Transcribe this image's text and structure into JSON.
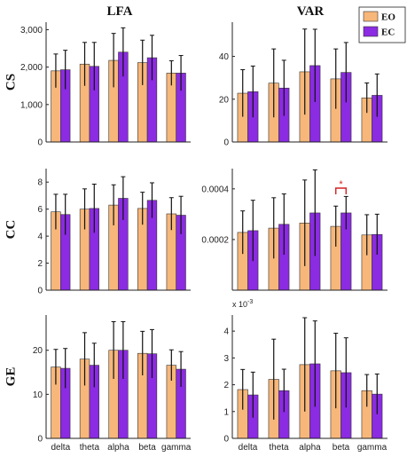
{
  "figure": {
    "col_titles": [
      "LFA",
      "VAR"
    ],
    "row_titles": [
      "CS",
      "CC",
      "GE"
    ],
    "legend": {
      "items": [
        {
          "label": "EO",
          "color": "#f7b77a"
        },
        {
          "label": "EC",
          "color": "#8b2be2"
        }
      ],
      "placement": "top-right"
    }
  },
  "chart_data": [
    {
      "type": "bar",
      "id": "cs-lfa",
      "categories": [
        "delta",
        "theta",
        "alpha",
        "beta",
        "gamma"
      ],
      "ylim": [
        0,
        3200
      ],
      "yticks": [
        0,
        1000,
        2000,
        3000
      ],
      "ytick_labels": [
        "0",
        "1,000",
        "2,000",
        "3,000"
      ],
      "series": [
        {
          "name": "EO",
          "values": [
            1900,
            2080,
            2180,
            2120,
            1840
          ],
          "errors": [
            450,
            580,
            720,
            600,
            330
          ]
        },
        {
          "name": "EC",
          "values": [
            1930,
            2020,
            2400,
            2250,
            1840
          ],
          "errors": [
            520,
            640,
            650,
            600,
            470
          ]
        }
      ]
    },
    {
      "type": "bar",
      "id": "cs-var",
      "categories": [
        "delta",
        "theta",
        "alpha",
        "beta",
        "gamma"
      ],
      "ylim": [
        0,
        56
      ],
      "yticks": [
        0,
        20,
        40
      ],
      "ytick_labels": [
        "0",
        "20",
        "40"
      ],
      "series": [
        {
          "name": "EO",
          "values": [
            22.8,
            27.5,
            32.8,
            29.5,
            20.6
          ],
          "errors": [
            11,
            16,
            20,
            14,
            7
          ]
        },
        {
          "name": "EC",
          "values": [
            23.5,
            25.2,
            35.7,
            32.5,
            21.8
          ],
          "errors": [
            12,
            13,
            17,
            14,
            10
          ]
        }
      ]
    },
    {
      "type": "bar",
      "id": "cc-lfa",
      "categories": [
        "delta",
        "theta",
        "alpha",
        "beta",
        "gamma"
      ],
      "ylim": [
        0,
        9
      ],
      "yticks": [
        0,
        2,
        4,
        6,
        8
      ],
      "ytick_labels": [
        "0",
        "2",
        "4",
        "6",
        "8"
      ],
      "series": [
        {
          "name": "EO",
          "values": [
            5.8,
            6.0,
            6.3,
            6.05,
            5.65
          ],
          "errors": [
            1.3,
            1.5,
            1.5,
            1.2,
            1.2
          ]
        },
        {
          "name": "EC",
          "values": [
            5.6,
            6.05,
            6.8,
            6.65,
            5.55
          ],
          "errors": [
            1.5,
            1.8,
            1.6,
            1.3,
            1.4
          ]
        }
      ]
    },
    {
      "type": "bar",
      "id": "cc-var",
      "categories": [
        "delta",
        "theta",
        "alpha",
        "beta",
        "gamma"
      ],
      "ylim": [
        0,
        0.00048
      ],
      "yticks": [
        0.0002,
        0.0004
      ],
      "ytick_labels": [
        "0.0002",
        "0.0004"
      ],
      "series": [
        {
          "name": "EO",
          "values": [
            0.000228,
            0.000245,
            0.000265,
            0.000252,
            0.000218
          ],
          "errors": [
            8.5e-05,
            0.00012,
            0.00017,
            8e-05,
            8e-05
          ]
        },
        {
          "name": "EC",
          "values": [
            0.000235,
            0.00026,
            0.000305,
            0.000305,
            0.00022
          ],
          "errors": [
            0.00012,
            0.00012,
            0.00017,
            6.5e-05,
            8e-05
          ]
        }
      ],
      "significance": {
        "category": "beta",
        "marker": "*"
      }
    },
    {
      "type": "bar",
      "id": "ge-lfa",
      "categories": [
        "delta",
        "theta",
        "alpha",
        "beta",
        "gamma"
      ],
      "ylim": [
        0,
        28
      ],
      "yticks": [
        0,
        10,
        20
      ],
      "ytick_labels": [
        "0",
        "10",
        "20"
      ],
      "series": [
        {
          "name": "EO",
          "values": [
            16.2,
            18.0,
            20.0,
            19.3,
            16.6
          ],
          "errors": [
            4,
            6,
            6.5,
            5,
            3.5
          ]
        },
        {
          "name": "EC",
          "values": [
            15.9,
            16.6,
            20.0,
            19.2,
            15.7
          ],
          "errors": [
            4.5,
            5,
            6.5,
            5.5,
            4
          ]
        }
      ]
    },
    {
      "type": "bar",
      "id": "ge-var",
      "categories": [
        "delta",
        "theta",
        "alpha",
        "beta",
        "gamma"
      ],
      "ylim": [
        0,
        4.6
      ],
      "yticks": [
        0,
        1,
        2,
        3,
        4
      ],
      "ytick_labels": [
        "0",
        "1",
        "2",
        "3",
        "4"
      ],
      "y_exponent_label": "x 10^-3",
      "series": [
        {
          "name": "EO",
          "values": [
            1.82,
            2.2,
            2.75,
            2.52,
            1.78
          ],
          "errors": [
            0.75,
            1.5,
            1.75,
            1.4,
            0.6
          ]
        },
        {
          "name": "EC",
          "values": [
            1.62,
            1.78,
            2.78,
            2.45,
            1.65
          ],
          "errors": [
            0.85,
            0.8,
            1.6,
            1.3,
            0.75
          ]
        }
      ]
    }
  ]
}
